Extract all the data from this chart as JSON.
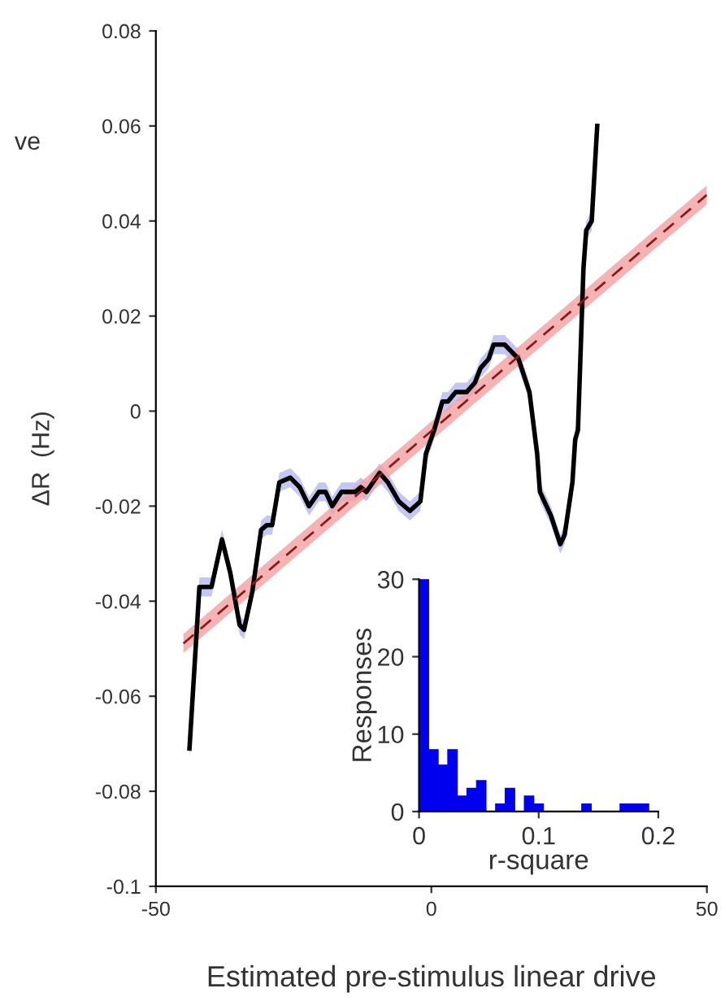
{
  "chart_data": [
    {
      "type": "line",
      "xlabel": "Estimated pre-stimulus linear drive",
      "ylabel": "ΔR  (Hz)",
      "xlim": [
        -50,
        50
      ],
      "ylim": [
        -0.1,
        0.08
      ],
      "xticks": [
        -50,
        0,
        50
      ],
      "yticks": [
        -0.1,
        -0.08,
        -0.06,
        -0.04,
        -0.02,
        0,
        0.02,
        0.04,
        0.06,
        0.08
      ],
      "grid": false,
      "legend": false,
      "annotations": [
        "ve"
      ],
      "series": [
        {
          "color": "#000000",
          "line_style": "solid",
          "x": [
            -43.9,
            -42.1,
            -40.9,
            -39.9,
            -38.0,
            -36.5,
            -34.8,
            -34.0,
            -32.5,
            -30.9,
            -29.9,
            -28.9,
            -27.6,
            -25.6,
            -23.9,
            -22.2,
            -20.4,
            -19.2,
            -18.0,
            -16.3,
            -13.8,
            -12.8,
            -11.8,
            -9.4,
            -7.9,
            -5.9,
            -3.9,
            -2.0,
            -1.0,
            0.5,
            2.0,
            3.0,
            4.4,
            6.4,
            7.9,
            8.9,
            10.4,
            11.3,
            13.3,
            15.8,
            17.8,
            19.2,
            19.7,
            21.7,
            23.4,
            24.2,
            25.6,
            26.1,
            26.6,
            27.6,
            28.1,
            29.1,
            30.1
          ],
          "values": [
            -0.071,
            -0.037,
            -0.037,
            -0.037,
            -0.027,
            -0.034,
            -0.045,
            -0.046,
            -0.038,
            -0.025,
            -0.024,
            -0.024,
            -0.015,
            -0.014,
            -0.016,
            -0.02,
            -0.017,
            -0.017,
            -0.02,
            -0.017,
            -0.017,
            -0.016,
            -0.017,
            -0.013,
            -0.015,
            -0.019,
            -0.021,
            -0.019,
            -0.009,
            -0.004,
            0.002,
            0.002,
            0.004,
            0.004,
            0.006,
            0.009,
            0.011,
            0.014,
            0.014,
            0.011,
            0.004,
            -0.009,
            -0.017,
            -0.022,
            -0.028,
            -0.026,
            -0.015,
            -0.006,
            -0.004,
            0.03,
            0.038,
            0.04,
            0.06
          ],
          "lower": [
            -0.073,
            -0.039,
            -0.039,
            -0.039,
            -0.029,
            -0.036,
            -0.047,
            -0.048,
            -0.04,
            -0.027,
            -0.026,
            -0.026,
            -0.017,
            -0.016,
            -0.018,
            -0.022,
            -0.019,
            -0.019,
            -0.022,
            -0.019,
            -0.019,
            -0.018,
            -0.019,
            -0.015,
            -0.017,
            -0.021,
            -0.023,
            -0.021,
            -0.011,
            -0.006,
            0.0,
            0.0,
            0.002,
            0.002,
            0.004,
            0.007,
            0.009,
            0.012,
            0.012,
            0.009,
            0.002,
            -0.011,
            -0.019,
            -0.024,
            -0.03,
            -0.028,
            -0.017,
            -0.008,
            -0.006,
            0.028,
            0.036,
            0.038,
            0.058
          ],
          "upper": [
            -0.069,
            -0.035,
            -0.035,
            -0.035,
            -0.025,
            -0.032,
            -0.043,
            -0.044,
            -0.036,
            -0.023,
            -0.022,
            -0.022,
            -0.013,
            -0.012,
            -0.014,
            -0.018,
            -0.015,
            -0.015,
            -0.018,
            -0.015,
            -0.015,
            -0.014,
            -0.015,
            -0.011,
            -0.013,
            -0.017,
            -0.019,
            -0.017,
            -0.007,
            -0.002,
            0.004,
            0.004,
            0.006,
            0.006,
            0.008,
            0.011,
            0.013,
            0.016,
            0.016,
            0.013,
            0.006,
            -0.007,
            -0.015,
            -0.02,
            -0.026,
            -0.024,
            -0.013,
            -0.004,
            -0.002,
            0.032,
            0.04,
            0.042,
            0.062
          ]
        },
        {
          "color": "#8b1a1a",
          "line_style": "dashed",
          "x": [
            -45,
            50
          ],
          "values": [
            -0.0489,
            0.0455
          ],
          "lower": [
            -0.0509,
            0.0435
          ],
          "upper": [
            -0.0469,
            0.0475
          ]
        }
      ]
    },
    {
      "type": "histogram",
      "xlabel": "r-square",
      "ylabel": "Responses",
      "color": "#0000ee",
      "xlim": [
        0,
        0.2
      ],
      "ylim": [
        0,
        30
      ],
      "xticks": [
        0,
        0.1,
        0.2
      ],
      "yticks": [
        0,
        10,
        20,
        30
      ],
      "grid": false,
      "bins": [
        0,
        0.008,
        0.016,
        0.024,
        0.032,
        0.04,
        0.048,
        0.056,
        0.064,
        0.072,
        0.08,
        0.088,
        0.096,
        0.104,
        0.112,
        0.12,
        0.128,
        0.136,
        0.144,
        0.152,
        0.16,
        0.168,
        0.176,
        0.184,
        0.192,
        0.2
      ],
      "values": [
        30,
        8,
        6,
        8,
        2,
        3,
        4,
        0,
        1,
        3,
        0,
        2,
        1,
        0,
        0,
        0,
        0,
        1,
        0,
        0,
        0,
        1,
        1,
        1,
        0
      ]
    }
  ]
}
